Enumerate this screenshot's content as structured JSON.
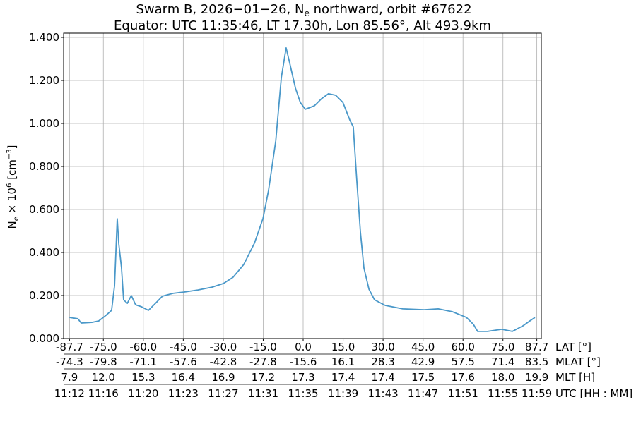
{
  "chart_data": {
    "type": "line",
    "title_line1": "Swarm B, 2026−01−26, N",
    "title_sub": "e",
    "title_line1_rest": " northward, orbit #67622",
    "title_line2": "Equator: UTC 11:35:46, LT 17.30h, Lon 85.56°, Alt 493.9km",
    "ylabel_main": "N",
    "ylabel_sub": "e",
    "ylabel_mid": " × 10",
    "ylabel_sup": "6",
    "ylabel_unit": " [cm",
    "ylabel_unit_sup": "−3",
    "ylabel_end": "]",
    "ylim": [
      0,
      1.4
    ],
    "xlim": [
      -87.7,
      87.7
    ],
    "grid": true,
    "line_color": "#4a98c9",
    "y_ticks": [
      "0.000",
      "0.200",
      "0.400",
      "0.600",
      "0.800",
      "1.000",
      "1.200",
      "1.400"
    ],
    "y_tick_values": [
      0,
      0.2,
      0.4,
      0.6,
      0.8,
      1.0,
      1.2,
      1.4
    ],
    "x_tick_values": [
      -87.7,
      -75,
      -60,
      -45,
      -30,
      -15,
      0,
      15,
      30,
      45,
      60,
      75,
      87.7
    ],
    "x_axes": [
      {
        "label": "LAT [°]",
        "ticks": [
          "-87.7",
          "-75.0",
          "-60.0",
          "-45.0",
          "-30.0",
          "-15.0",
          "0.0",
          "15.0",
          "30.0",
          "45.0",
          "60.0",
          "75.0",
          "87.7"
        ]
      },
      {
        "label": "MLAT [°]",
        "ticks": [
          "-74.3",
          "-79.8",
          "-71.1",
          "-57.6",
          "-42.8",
          "-27.8",
          "-15.6",
          "16.1",
          "28.3",
          "42.9",
          "57.5",
          "71.4",
          "83.5"
        ]
      },
      {
        "label": "MLT [H]",
        "ticks": [
          "7.9",
          "12.0",
          "15.3",
          "16.4",
          "16.9",
          "17.2",
          "17.3",
          "17.4",
          "17.4",
          "17.5",
          "17.6",
          "18.0",
          "19.9"
        ]
      },
      {
        "label": "UTC [HH : MM]",
        "ticks": [
          "11:12",
          "11:16",
          "11:20",
          "11:23",
          "11:27",
          "11:31",
          "11:35",
          "11:39",
          "11:43",
          "11:47",
          "11:51",
          "11:55",
          "11:59"
        ]
      }
    ],
    "series": [
      {
        "x": [
          -87.7,
          -84.6,
          -83.3,
          -79.3,
          -76.7,
          -74.0,
          -71.9,
          -70.8,
          -69.8,
          -69.2,
          -68.2,
          -67.4,
          -66.0,
          -64.5,
          -62.9,
          -60.7,
          -58.1,
          -55.4,
          -52.8,
          -48.8,
          -44.8,
          -39.5,
          -34.2,
          -29.9,
          -26.3,
          -22.3,
          -18.3,
          -15.1,
          -13.0,
          -10.3,
          -8.2,
          -6.4,
          -5.0,
          -2.9,
          -1.1,
          0.8,
          4.2,
          6.9,
          9.5,
          12.2,
          14.9,
          17.5,
          18.8,
          20.2,
          21.5,
          22.8,
          24.7,
          26.8,
          30.8,
          37.4,
          45.4,
          50.7,
          56.0,
          61.3,
          63.9,
          65.5,
          69.2,
          74.5,
          78.5,
          82.5,
          85.1,
          87.0
        ],
        "y": [
          0.098,
          0.092,
          0.072,
          0.075,
          0.082,
          0.108,
          0.131,
          0.246,
          0.557,
          0.44,
          0.33,
          0.18,
          0.164,
          0.2,
          0.157,
          0.148,
          0.131,
          0.164,
          0.197,
          0.21,
          0.216,
          0.226,
          0.239,
          0.256,
          0.285,
          0.344,
          0.443,
          0.557,
          0.689,
          0.918,
          1.213,
          1.351,
          1.279,
          1.164,
          1.098,
          1.066,
          1.082,
          1.115,
          1.138,
          1.131,
          1.098,
          1.016,
          0.984,
          0.721,
          0.492,
          0.328,
          0.23,
          0.18,
          0.154,
          0.138,
          0.134,
          0.138,
          0.125,
          0.098,
          0.066,
          0.033,
          0.033,
          0.043,
          0.033,
          0.059,
          0.082,
          0.098
        ]
      }
    ]
  }
}
